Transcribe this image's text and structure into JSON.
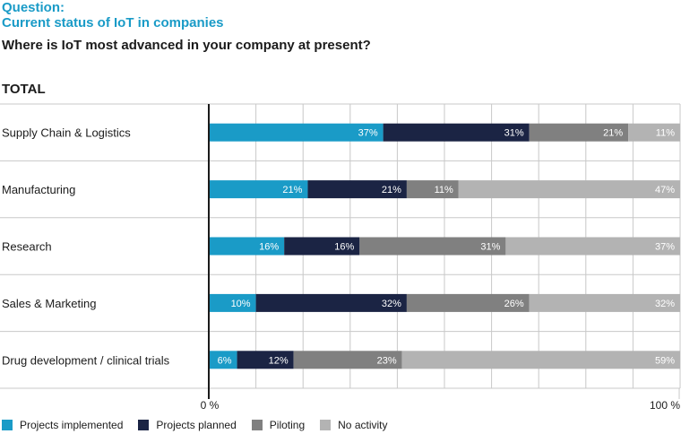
{
  "header": {
    "question_label": "Question:",
    "question_title": "Current status of IoT in companies",
    "question_text": "Where is IoT most advanced in your company at present?",
    "section": "TOTAL"
  },
  "colors": {
    "implemented": "#1a9bc7",
    "planned": "#1b2444",
    "piloting": "#808080",
    "no_activity": "#b3b3b3"
  },
  "chart_data": {
    "type": "bar",
    "orientation": "horizontal",
    "stacked": true,
    "categories": [
      "Supply Chain & Logistics",
      "Manufacturing",
      "Research",
      "Sales & Marketing",
      "Drug development / clinical trials"
    ],
    "series": [
      {
        "name": "Projects implemented",
        "values": [
          37,
          21,
          16,
          10,
          6
        ],
        "labels": [
          "37%",
          "21%",
          "16%",
          "10%",
          "6%"
        ]
      },
      {
        "name": "Projects planned",
        "values": [
          31,
          21,
          16,
          32,
          12
        ],
        "labels": [
          "31%",
          "21%",
          "16%",
          "32%",
          "12%"
        ]
      },
      {
        "name": "Piloting",
        "values": [
          21,
          11,
          31,
          26,
          23
        ],
        "labels": [
          "21%",
          "11%",
          "31%",
          "26%",
          "23%"
        ]
      },
      {
        "name": "No activity",
        "values": [
          11,
          47,
          37,
          32,
          59
        ],
        "labels": [
          "11%",
          "47%",
          "37%",
          "32%",
          "59%"
        ]
      }
    ],
    "xlim": [
      0,
      100
    ],
    "tick_labels": [
      "0 %",
      "100 %"
    ],
    "grid": true,
    "legend_position": "bottom-left"
  }
}
